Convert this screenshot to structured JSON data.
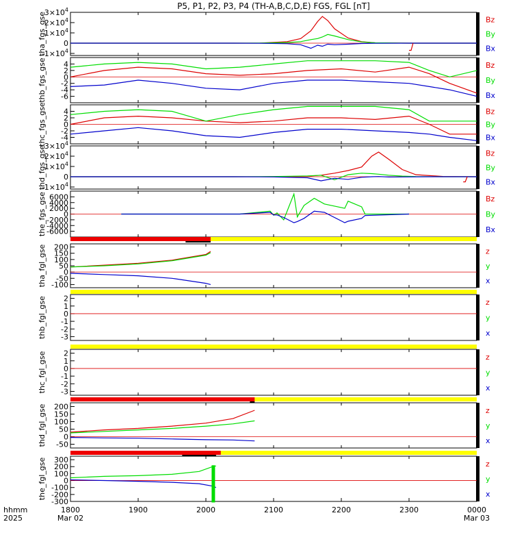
{
  "title": "P5, P1, P2, P3, P4 (TH-A,B,C,D,E) FGS, FGL [nT]",
  "time_axis": {
    "label_lines": [
      "hhmm",
      "2025"
    ],
    "ticks": [
      {
        "label": "1800",
        "sub": "Mar 02",
        "hour": 18
      },
      {
        "label": "1900",
        "sub": "",
        "hour": 19
      },
      {
        "label": "2000",
        "sub": "",
        "hour": 20
      },
      {
        "label": "2100",
        "sub": "",
        "hour": 21
      },
      {
        "label": "2200",
        "sub": "",
        "hour": 22
      },
      {
        "label": "2300",
        "sub": "",
        "hour": 23
      },
      {
        "label": "0000",
        "sub": "Mar 03",
        "hour": 24
      }
    ],
    "range_hours": [
      18,
      24
    ]
  },
  "colors": {
    "x": "#0000cc",
    "y": "#00dd00",
    "z": "#dd0000",
    "flag_red": "#ee0000",
    "flag_yellow": "#ffff00",
    "flag_black": "#000000",
    "axis": "#000000"
  },
  "chart_data": [
    {
      "type": "line",
      "panel": "tha_fgs_gse",
      "ylabel": "tha_fgs_gse",
      "ylim": [
        -12000,
        30000
      ],
      "yticks": [
        {
          "v": 30000,
          "base": "3",
          "exp": "4"
        },
        {
          "v": 20000,
          "base": "2",
          "exp": "4"
        },
        {
          "v": 10000,
          "base": "1",
          "exp": "4"
        },
        {
          "v": 0,
          "base": "0",
          "exp": ""
        },
        {
          "v": -10000,
          "base": "-1",
          "exp": "4"
        }
      ],
      "legend": [
        "Bz",
        "By",
        "Bx"
      ],
      "x": [
        18.0,
        20.4,
        20.8,
        21.2,
        21.4,
        21.55,
        21.65,
        21.72,
        21.8,
        21.9,
        22.1,
        22.3,
        22.5,
        23.0,
        24.0
      ],
      "series": [
        {
          "name": "Bz",
          "color": "z",
          "values": [
            0,
            0,
            100,
            1500,
            4500,
            12000,
            21000,
            26000,
            22000,
            14000,
            5000,
            1500,
            300,
            0,
            0
          ]
        },
        {
          "name": "By",
          "color": "y",
          "values": [
            0,
            0,
            100,
            600,
            1500,
            3500,
            4500,
            6000,
            8500,
            7000,
            3500,
            1200,
            300,
            0,
            0
          ]
        },
        {
          "name": "Bx",
          "color": "x",
          "values": [
            0,
            0,
            -100,
            -500,
            -1500,
            -5000,
            -2000,
            -3000,
            -1000,
            -1500,
            -1000,
            -300,
            -100,
            0,
            0
          ]
        }
      ],
      "spike": {
        "x": [
          23.0,
          23.03,
          23.06
        ],
        "values": [
          -7000,
          -7000,
          0
        ],
        "color": "z"
      }
    },
    {
      "type": "line",
      "panel": "thb_fgs_gse",
      "ylabel": "thb_fgs_gse",
      "ylim": [
        -8,
        6
      ],
      "yticks": [
        {
          "v": 4,
          "base": "4"
        },
        {
          "v": 2,
          "base": "2"
        },
        {
          "v": 0,
          "base": "0"
        },
        {
          "v": -2,
          "base": "-2"
        },
        {
          "v": -4,
          "base": "-4"
        },
        {
          "v": -6,
          "base": "-6"
        }
      ],
      "legend": [
        "Bz",
        "By",
        "Bx"
      ],
      "x": [
        18.0,
        18.5,
        19.0,
        19.5,
        20.0,
        20.5,
        21.0,
        21.5,
        22.0,
        22.5,
        23.0,
        23.3,
        23.6,
        24.0
      ],
      "series": [
        {
          "name": "Bz",
          "color": "z",
          "values": [
            0,
            2,
            3,
            2.5,
            1,
            0.5,
            1,
            2,
            2.5,
            1.5,
            3,
            1,
            -2,
            -5
          ]
        },
        {
          "name": "By",
          "color": "y",
          "values": [
            3,
            4,
            4.5,
            4,
            2.5,
            3,
            4,
            5,
            5,
            5,
            4.5,
            2,
            0,
            2
          ]
        },
        {
          "name": "Bx",
          "color": "x",
          "values": [
            -3,
            -2.5,
            -1,
            -2,
            -3.5,
            -4,
            -2,
            -1,
            -1,
            -1.5,
            -2,
            -3,
            -4,
            -6
          ]
        }
      ]
    },
    {
      "type": "line",
      "panel": "thc_fgs_gse",
      "ylabel": "thc_fgs_gse",
      "ylim": [
        -6,
        6
      ],
      "yticks": [
        {
          "v": 4,
          "base": "4"
        },
        {
          "v": 2,
          "base": "2"
        },
        {
          "v": 0,
          "base": "0"
        },
        {
          "v": -2,
          "base": "-2"
        },
        {
          "v": -4,
          "base": "-4"
        }
      ],
      "legend": [
        "Bz",
        "By",
        "Bx"
      ],
      "x": [
        18.0,
        18.5,
        19.0,
        19.5,
        20.0,
        20.5,
        21.0,
        21.5,
        22.0,
        22.5,
        23.0,
        23.3,
        23.6,
        24.0
      ],
      "series": [
        {
          "name": "Bz",
          "color": "z",
          "values": [
            0,
            2,
            2.5,
            2,
            1,
            0.5,
            1,
            2,
            2,
            1.5,
            2.5,
            0,
            -3,
            -3
          ]
        },
        {
          "name": "By",
          "color": "y",
          "values": [
            3,
            4,
            4.5,
            4,
            1,
            3,
            4.5,
            5.5,
            5.5,
            5.5,
            4.5,
            1,
            1,
            1
          ]
        },
        {
          "name": "Bx",
          "color": "x",
          "values": [
            -3,
            -2,
            -1,
            -2,
            -3.5,
            -4,
            -2.5,
            -1.5,
            -1.5,
            -2,
            -2.5,
            -3,
            -4,
            -5
          ]
        }
      ]
    },
    {
      "type": "line",
      "panel": "thd_fgs_gse",
      "ylabel": "thd_fgs_gse",
      "ylim": [
        -12000,
        30000
      ],
      "yticks": [
        {
          "v": 30000,
          "base": "3",
          "exp": "4"
        },
        {
          "v": 20000,
          "base": "2",
          "exp": "4"
        },
        {
          "v": 10000,
          "base": "1",
          "exp": "4"
        },
        {
          "v": 0,
          "base": "0",
          "exp": ""
        },
        {
          "v": -10000,
          "base": "-1",
          "exp": "4"
        }
      ],
      "legend": [
        "Bz",
        "By",
        "Bx"
      ],
      "x": [
        18.0,
        20.4,
        21.0,
        21.5,
        21.7,
        21.9,
        22.1,
        22.3,
        22.45,
        22.55,
        22.7,
        22.9,
        23.1,
        23.5,
        24.0
      ],
      "series": [
        {
          "name": "Bz",
          "color": "z",
          "values": [
            0,
            0,
            100,
            500,
            1500,
            3500,
            6000,
            9500,
            20000,
            24000,
            17000,
            7000,
            2000,
            300,
            0
          ]
        },
        {
          "name": "By",
          "color": "y",
          "values": [
            0,
            0,
            200,
            800,
            1500,
            -3000,
            2000,
            3500,
            3000,
            2500,
            1500,
            600,
            200,
            0,
            0
          ]
        },
        {
          "name": "Bx",
          "color": "x",
          "values": [
            0,
            0,
            -200,
            -1000,
            -4000,
            -1500,
            -2500,
            -500,
            0,
            200,
            -300,
            -200,
            -100,
            0,
            0
          ]
        }
      ],
      "spike": {
        "x": [
          23.8,
          23.83,
          23.86
        ],
        "values": [
          -5000,
          -5000,
          0
        ],
        "color": "z"
      }
    },
    {
      "type": "line",
      "panel": "the_fgs_gse",
      "ylabel": "the_fgs_gse",
      "ylim": [
        -8000,
        8000
      ],
      "yticks": [
        {
          "v": 6000,
          "base": "6000"
        },
        {
          "v": 4000,
          "base": "4000"
        },
        {
          "v": 2000,
          "base": "2000"
        },
        {
          "v": 0,
          "base": "0"
        },
        {
          "v": -2000,
          "base": "-2000"
        },
        {
          "v": -4000,
          "base": "-4000"
        },
        {
          "v": -6000,
          "base": "-6000"
        }
      ],
      "legend": [
        "Bz",
        "By",
        "Bx"
      ],
      "x": [
        18.75,
        20.5,
        20.95,
        21.0,
        21.05,
        21.15,
        21.3,
        21.35,
        21.45,
        21.6,
        21.75,
        22.05,
        22.1,
        22.3,
        22.35,
        23.0
      ],
      "series": [
        {
          "name": "By",
          "color": "y",
          "values": [
            0,
            0,
            1000,
            -400,
            400,
            -2000,
            7000,
            -1000,
            3000,
            5500,
            3500,
            2000,
            4500,
            2500,
            0,
            0
          ]
        },
        {
          "name": "Bx",
          "color": "x",
          "values": [
            0,
            0,
            600,
            -300,
            -300,
            -1200,
            -3000,
            -2600,
            -1500,
            1000,
            600,
            -3000,
            -2500,
            -1500,
            -500,
            0
          ]
        }
      ]
    },
    {
      "type": "line",
      "panel": "tha_fgl_gse",
      "ylabel": "tha_fgl_gse",
      "ylim": [
        -125,
        225
      ],
      "yticks": [
        {
          "v": 200,
          "base": "200"
        },
        {
          "v": 150,
          "base": "150"
        },
        {
          "v": 100,
          "base": "100"
        },
        {
          "v": 50,
          "base": "50"
        },
        {
          "v": 0,
          "base": "0"
        },
        {
          "v": -50,
          "base": "-50"
        },
        {
          "v": -100,
          "base": "-100"
        }
      ],
      "legend": [
        "z",
        "y",
        "x"
      ],
      "x": [
        18.0,
        18.5,
        19.0,
        19.5,
        20.0,
        20.07
      ],
      "series": [
        {
          "name": "z",
          "color": "z",
          "values": [
            40,
            55,
            70,
            95,
            140,
            165
          ]
        },
        {
          "name": "y",
          "color": "y",
          "values": [
            40,
            50,
            65,
            90,
            135,
            155
          ]
        },
        {
          "name": "x",
          "color": "x",
          "values": [
            -10,
            -20,
            -30,
            -50,
            -90,
            -100
          ]
        }
      ],
      "flag_bar": {
        "red_until": 20.07,
        "black_from": 19.7,
        "black_to": 20.07
      }
    },
    {
      "type": "line",
      "panel": "thb_fgl_gse",
      "ylabel": "thb_fgl_gse",
      "ylim": [
        -3.5,
        2.5
      ],
      "yticks": [
        {
          "v": 2,
          "base": "2"
        },
        {
          "v": 1,
          "base": "1"
        },
        {
          "v": 0,
          "base": "0"
        },
        {
          "v": -1,
          "base": "-1"
        },
        {
          "v": -2,
          "base": "-2"
        },
        {
          "v": -3,
          "base": "-3"
        }
      ],
      "legend": [
        "z",
        "y",
        "x"
      ],
      "x": [],
      "series": [],
      "flag_bar": {
        "red_until": null
      }
    },
    {
      "type": "line",
      "panel": "thc_fgl_gse",
      "ylabel": "thc_fgl_gse",
      "ylim": [
        -3.5,
        2.5
      ],
      "yticks": [
        {
          "v": 2,
          "base": "2"
        },
        {
          "v": 1,
          "base": "1"
        },
        {
          "v": 0,
          "base": "0"
        },
        {
          "v": -1,
          "base": "-1"
        },
        {
          "v": -2,
          "base": "-2"
        },
        {
          "v": -3,
          "base": "-3"
        }
      ],
      "legend": [
        "z",
        "y",
        "x"
      ],
      "x": [],
      "series": [],
      "flag_bar": {
        "red_until": null
      }
    },
    {
      "type": "line",
      "panel": "thd_fgl_gse",
      "ylabel": "thd_fgl_gse",
      "ylim": [
        -75,
        225
      ],
      "yticks": [
        {
          "v": 200,
          "base": "200"
        },
        {
          "v": 150,
          "base": "150"
        },
        {
          "v": 100,
          "base": "100"
        },
        {
          "v": 50,
          "base": "50"
        },
        {
          "v": 0,
          "base": "0"
        },
        {
          "v": -50,
          "base": "-50"
        }
      ],
      "legend": [
        "z",
        "y",
        "x"
      ],
      "x": [
        18.0,
        18.5,
        19.0,
        19.5,
        20.0,
        20.4,
        20.72
      ],
      "series": [
        {
          "name": "z",
          "color": "z",
          "values": [
            30,
            45,
            55,
            70,
            90,
            120,
            175
          ]
        },
        {
          "name": "y",
          "color": "y",
          "values": [
            25,
            35,
            45,
            55,
            70,
            85,
            105
          ]
        },
        {
          "name": "x",
          "color": "x",
          "values": [
            -5,
            -8,
            -10,
            -15,
            -20,
            -22,
            -28
          ]
        }
      ],
      "flag_bar": {
        "red_until": 20.72,
        "black_from": 20.65,
        "black_to": 20.72
      }
    },
    {
      "type": "line",
      "panel": "the_fgl_gse",
      "ylabel": "the_fgl_gse",
      "ylim": [
        -300,
        350
      ],
      "yticks": [
        {
          "v": 300,
          "base": "300"
        },
        {
          "v": 200,
          "base": "200"
        },
        {
          "v": 100,
          "base": "100"
        },
        {
          "v": 0,
          "base": "0"
        },
        {
          "v": -100,
          "base": "-100"
        },
        {
          "v": -200,
          "base": "-200"
        },
        {
          "v": -300,
          "base": "-300"
        }
      ],
      "legend": [
        "z",
        "y",
        "x"
      ],
      "x": [
        18.0,
        18.5,
        19.0,
        19.5,
        19.9,
        20.1,
        20.15
      ],
      "series": [
        {
          "name": "y",
          "color": "y",
          "values": [
            40,
            60,
            70,
            90,
            130,
            200,
            210
          ]
        },
        {
          "name": "x",
          "color": "x",
          "values": [
            10,
            0,
            -10,
            -25,
            -45,
            -80,
            -100
          ]
        }
      ],
      "spike": {
        "x": [
          20.1,
          20.1,
          20.12,
          20.12
        ],
        "values": [
          220,
          -300,
          -300,
          220
        ],
        "color": "y"
      },
      "flag_bar": {
        "red_until": 20.22,
        "black_from": 19.65,
        "black_to": 20.15
      }
    }
  ]
}
